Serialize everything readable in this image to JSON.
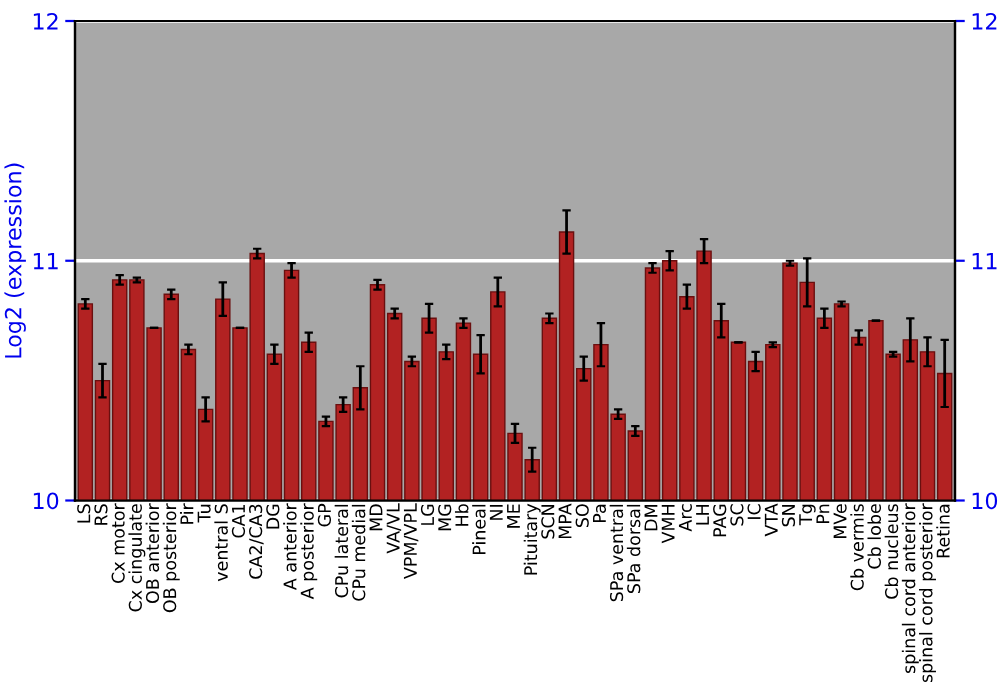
{
  "chart_data": {
    "type": "bar",
    "ylabel": "Log2 (expression)",
    "categories": [
      "LS",
      "RS",
      "Cx motor",
      "Cx cingulate",
      "OB anterior",
      "OB posterior",
      "Pir",
      "Tu",
      "ventral S",
      "CA1",
      "CA2/CA3",
      "DG",
      "A anterior",
      "A posterior",
      "GP",
      "CPu lateral",
      "CPu medial",
      "MD",
      "VA/VL",
      "VPM/VPL",
      "LG",
      "MG",
      "Hb",
      "Pineal",
      "NI",
      "ME",
      "Pituitary",
      "SCN",
      "MPA",
      "SO",
      "Pa",
      "SPa ventral",
      "SPa dorsal",
      "DM",
      "VMH",
      "Arc",
      "LH",
      "PAG",
      "SC",
      "IC",
      "VTA",
      "SN",
      "Tg",
      "Pn",
      "MVe",
      "Cb vermis",
      "Cb lobe",
      "Cb nucleus",
      "spinal cord anterior",
      "spinal cord posterior",
      "Retina"
    ],
    "values": [
      10.82,
      10.5,
      10.92,
      10.92,
      10.72,
      10.86,
      10.63,
      10.38,
      10.84,
      10.72,
      11.03,
      10.61,
      10.96,
      10.66,
      10.33,
      10.4,
      10.47,
      10.9,
      10.78,
      10.58,
      10.76,
      10.62,
      10.74,
      10.61,
      10.87,
      10.28,
      10.17,
      10.76,
      11.12,
      10.55,
      10.65,
      10.36,
      10.29,
      10.97,
      11.0,
      10.85,
      11.04,
      10.75,
      10.66,
      10.58,
      10.65,
      10.99,
      10.91,
      10.76,
      10.82,
      10.68,
      10.75,
      10.61,
      10.67,
      10.62,
      10.53
    ],
    "errors": [
      0.02,
      0.07,
      0.02,
      0.01,
      0,
      0.02,
      0.02,
      0.05,
      0.07,
      0,
      0.02,
      0.04,
      0.03,
      0.04,
      0.02,
      0.03,
      0.09,
      0.02,
      0.02,
      0.02,
      0.06,
      0.03,
      0.02,
      0.08,
      0.06,
      0.04,
      0.05,
      0.02,
      0.09,
      0.05,
      0.09,
      0.02,
      0.02,
      0.02,
      0.04,
      0.05,
      0.05,
      0.07,
      0,
      0.04,
      0.01,
      0.01,
      0.1,
      0.04,
      0.01,
      0.03,
      0,
      0.01,
      0.09,
      0.06,
      0.14
    ],
    "color": "#b22222",
    "ylim": [
      10,
      12
    ],
    "yticks": [
      10,
      11,
      12
    ],
    "y2lim": [
      10,
      12
    ],
    "y2ticks": [
      10,
      11,
      12
    ],
    "grid": "y"
  }
}
